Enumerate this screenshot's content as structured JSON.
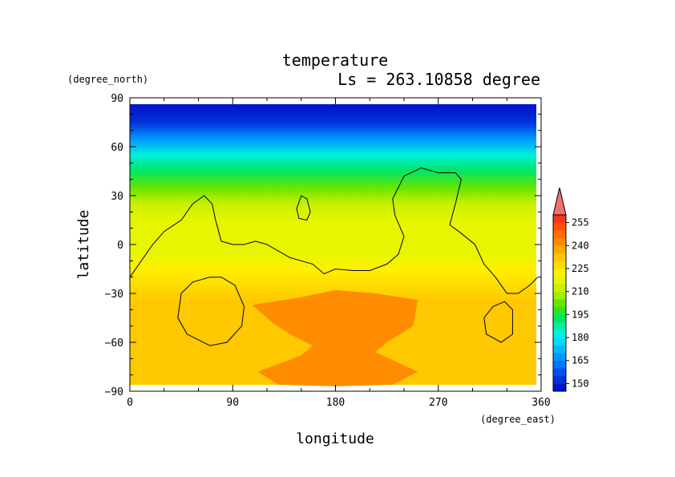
{
  "chart_data": {
    "type": "heatmap",
    "title": "temperature",
    "subtitle": "Ls = 263.10858 degree",
    "xlabel": "longitude",
    "ylabel": "latitude",
    "xunits": "(degree_east)",
    "yunits": "(degree_north)",
    "xlim": [
      0,
      360
    ],
    "ylim": [
      -90,
      90
    ],
    "xticks": [
      0,
      90,
      180,
      270,
      360
    ],
    "yticks": [
      90,
      60,
      30,
      0,
      -30,
      -60,
      -90
    ],
    "colorbar": {
      "levels": [
        145,
        150,
        155,
        160,
        165,
        170,
        175,
        180,
        185,
        190,
        195,
        200,
        205,
        210,
        215,
        220,
        225,
        230,
        235,
        240,
        245,
        250,
        255,
        260
      ],
      "colors": [
        "#0014c8",
        "#0032dc",
        "#0050f0",
        "#0073ff",
        "#0096ff",
        "#00b9ff",
        "#00dcff",
        "#00f0dc",
        "#00f0a0",
        "#00e664",
        "#28e628",
        "#64e600",
        "#a0f000",
        "#c8f000",
        "#e6f500",
        "#fff000",
        "#ffdc00",
        "#ffc800",
        "#ffaa00",
        "#ff8c00",
        "#ff6e00",
        "#ff5000",
        "#ff3214",
        "#f06464"
      ],
      "tick_labels": [
        "150",
        "165",
        "180",
        "195",
        "210",
        "225",
        "240",
        "255"
      ],
      "overflow_color": "#f07070"
    },
    "temperature_profile": [
      {
        "lat": 85,
        "value": 146
      },
      {
        "lat": 75,
        "value": 152
      },
      {
        "lat": 65,
        "value": 165
      },
      {
        "lat": 55,
        "value": 180
      },
      {
        "lat": 45,
        "value": 192
      },
      {
        "lat": 35,
        "value": 203
      },
      {
        "lat": 25,
        "value": 211
      },
      {
        "lat": 15,
        "value": 215
      },
      {
        "lat": 5,
        "value": 217
      },
      {
        "lat": -5,
        "value": 219
      },
      {
        "lat": -15,
        "value": 221
      },
      {
        "lat": -25,
        "value": 227
      },
      {
        "lat": -35,
        "value": 231
      },
      {
        "lat": -45,
        "value": 233
      },
      {
        "lat": -55,
        "value": 233
      },
      {
        "lat": -65,
        "value": 232
      },
      {
        "lat": -75,
        "value": 232
      },
      {
        "lat": -85,
        "value": 232
      }
    ],
    "warm_region": {
      "value": 241,
      "outline": [
        [
          107,
          -37
        ],
        [
          145,
          -33
        ],
        [
          180,
          -28
        ],
        [
          215,
          -30
        ],
        [
          252,
          -34
        ],
        [
          248,
          -50
        ],
        [
          225,
          -60
        ],
        [
          215,
          -66
        ],
        [
          252,
          -78
        ],
        [
          230,
          -86
        ],
        [
          180,
          -87
        ],
        [
          130,
          -86
        ],
        [
          112,
          -78
        ],
        [
          150,
          -68
        ],
        [
          160,
          -62
        ],
        [
          140,
          -55
        ],
        [
          125,
          -48
        ]
      ]
    },
    "coastline_contours": [
      [
        [
          0,
          -20
        ],
        [
          10,
          -10
        ],
        [
          20,
          0
        ],
        [
          30,
          8
        ],
        [
          45,
          15
        ],
        [
          55,
          25
        ],
        [
          65,
          30
        ],
        [
          72,
          25
        ],
        [
          75,
          15
        ],
        [
          80,
          2
        ],
        [
          90,
          0
        ],
        [
          100,
          0
        ],
        [
          110,
          2
        ],
        [
          120,
          0
        ],
        [
          140,
          -8
        ],
        [
          160,
          -12
        ],
        [
          170,
          -18
        ],
        [
          180,
          -15
        ],
        [
          195,
          -16
        ],
        [
          210,
          -16
        ],
        [
          225,
          -12
        ],
        [
          235,
          -6
        ],
        [
          240,
          5
        ],
        [
          232,
          18
        ],
        [
          230,
          28
        ],
        [
          235,
          35
        ],
        [
          240,
          42
        ],
        [
          255,
          47
        ],
        [
          270,
          44
        ],
        [
          285,
          44
        ],
        [
          290,
          40
        ],
        [
          285,
          25
        ],
        [
          280,
          12
        ],
        [
          288,
          8
        ],
        [
          302,
          0
        ],
        [
          310,
          -12
        ],
        [
          320,
          -20
        ],
        [
          330,
          -30
        ],
        [
          340,
          -30
        ],
        [
          350,
          -25
        ],
        [
          357,
          -20
        ]
      ],
      [
        [
          150,
          30
        ],
        [
          155,
          28
        ],
        [
          158,
          20
        ],
        [
          155,
          15
        ],
        [
          148,
          16
        ],
        [
          146,
          22
        ],
        [
          150,
          30
        ]
      ],
      [
        [
          70,
          -20
        ],
        [
          80,
          -20
        ],
        [
          92,
          -25
        ],
        [
          100,
          -38
        ],
        [
          98,
          -50
        ],
        [
          85,
          -60
        ],
        [
          70,
          -62
        ],
        [
          50,
          -55
        ],
        [
          42,
          -45
        ],
        [
          45,
          -30
        ],
        [
          55,
          -23
        ],
        [
          70,
          -20
        ]
      ],
      [
        [
          318,
          -38
        ],
        [
          328,
          -35
        ],
        [
          335,
          -40
        ],
        [
          335,
          -55
        ],
        [
          325,
          -60
        ],
        [
          312,
          -55
        ],
        [
          310,
          -45
        ],
        [
          318,
          -38
        ]
      ]
    ]
  }
}
